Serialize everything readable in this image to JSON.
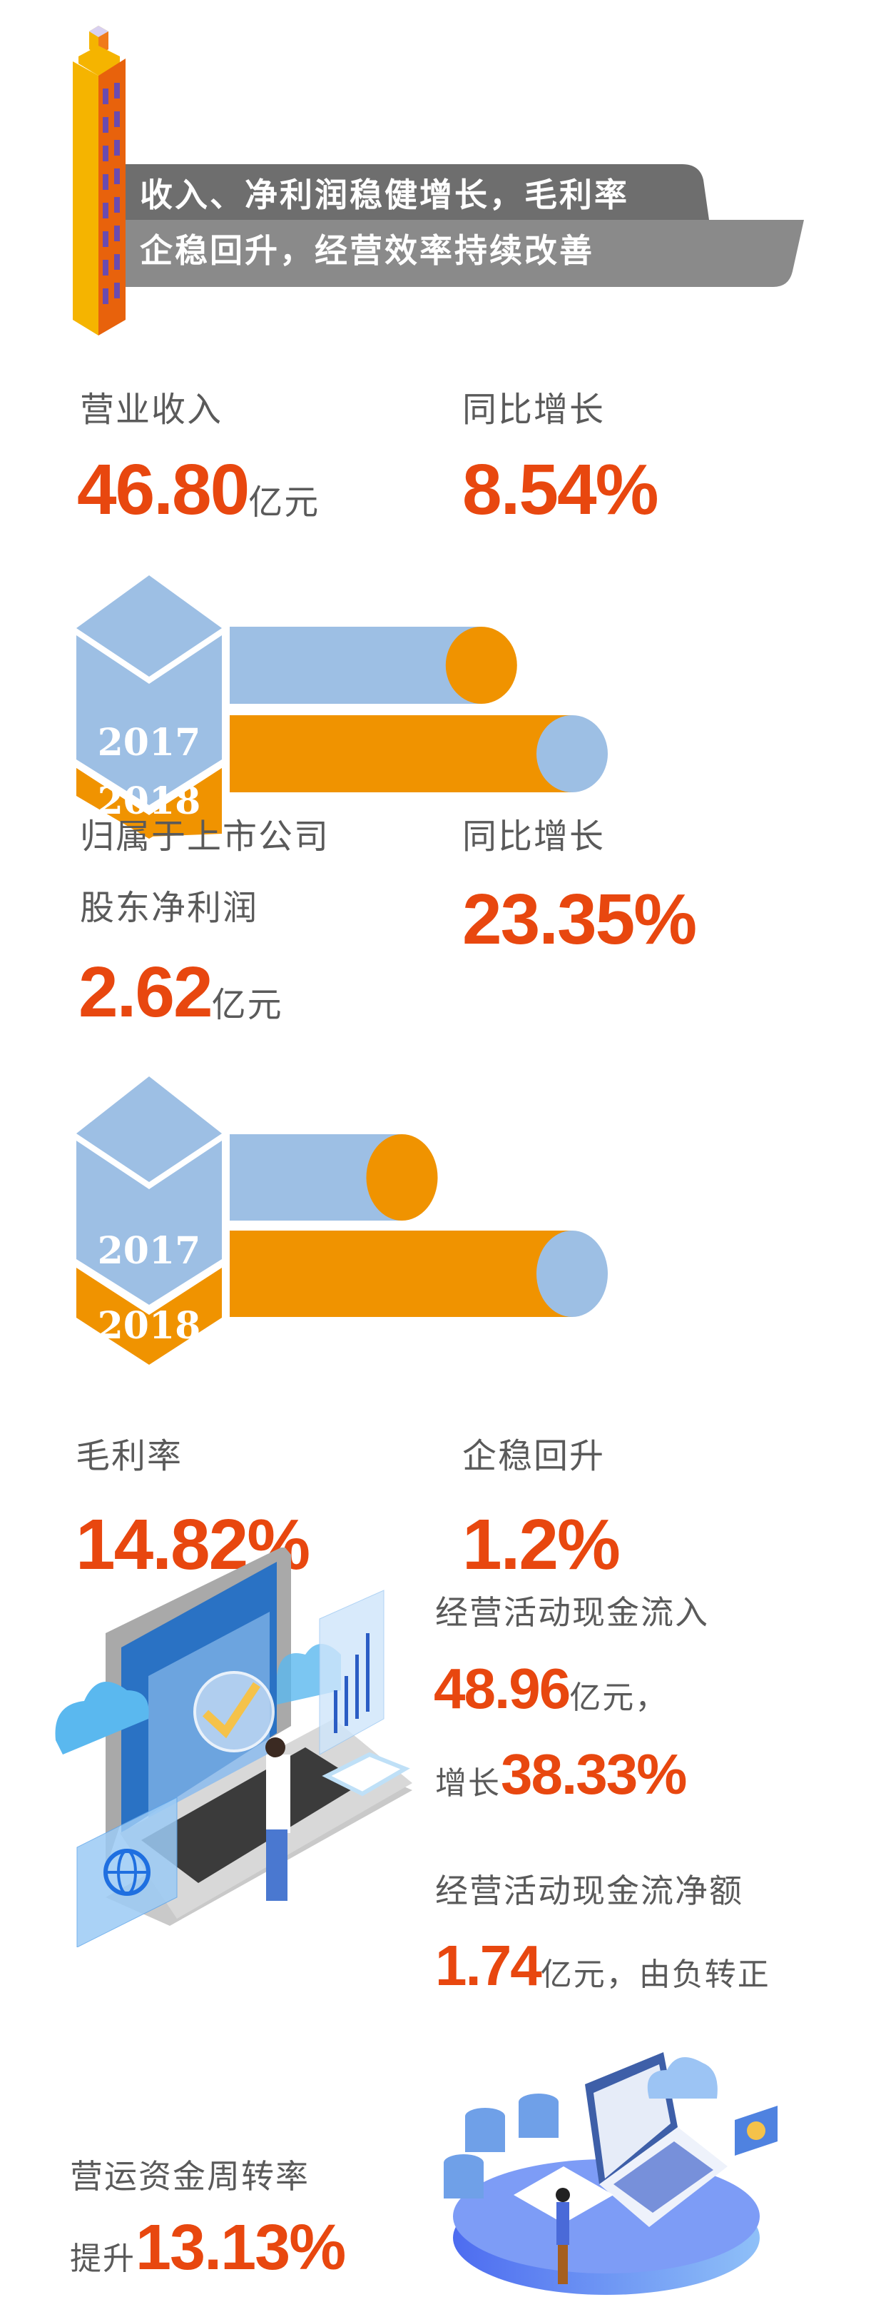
{
  "header": {
    "title_line1": "收入、净利润稳健增长，毛利率",
    "title_line2": "企稳回升，经营效率持续改善"
  },
  "revenue": {
    "label": "营业收入",
    "value": "46.80",
    "unit": "亿元",
    "growth_label": "同比增长",
    "growth_value": "8.54%",
    "years": [
      "2017",
      "2018"
    ],
    "bar_relative": [
      0.76,
      1.0
    ]
  },
  "profit": {
    "label_line1": "归属于上市公司",
    "label_line2": "股东净利润",
    "value": "2.62",
    "unit": "亿元",
    "growth_label": "同比增长",
    "growth_value": "23.35%",
    "years": [
      "2017",
      "2018"
    ],
    "bar_relative": [
      0.55,
      1.0
    ]
  },
  "margin": {
    "label": "毛利率",
    "value": "14.82%",
    "change_label": "企稳回升",
    "change_value": "1.2%"
  },
  "cashflow": {
    "inflow_label": "经营活动现金流入",
    "inflow_value": "48.96",
    "inflow_unit": "亿元，",
    "growth_prefix": "增长",
    "growth_value": "38.33%",
    "net_label": "经营活动现金流净额",
    "net_value": "1.74",
    "net_suffix": "亿元，由负转正"
  },
  "working_capital": {
    "label": "营运资金周转率",
    "prefix": "提升",
    "value": "13.13%"
  },
  "colors": {
    "accent": "#e8470f",
    "text_gray": "#5a5a5a",
    "bar_2017": "#9dbfe4",
    "bar_2018": "#f09300",
    "banner_dark": "#6e6e6e",
    "banner_light": "#8a8a8a"
  }
}
